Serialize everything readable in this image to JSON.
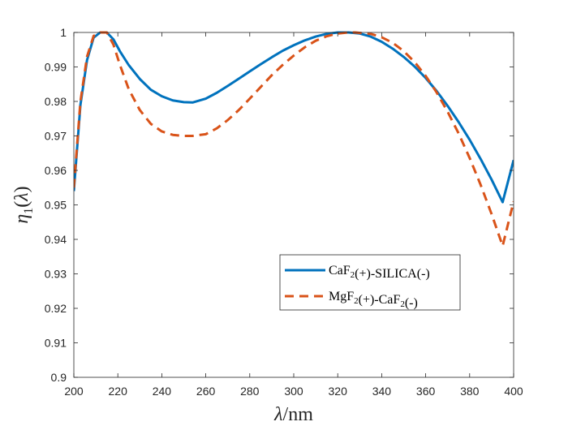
{
  "chart_data": {
    "type": "line",
    "title": "",
    "xlabel": "λ/nm",
    "ylabel": "η1(λ)",
    "xlim": [
      200,
      400
    ],
    "ylim": [
      0.9,
      1.0
    ],
    "xticks": [
      200,
      220,
      240,
      260,
      280,
      300,
      320,
      340,
      360,
      380,
      400
    ],
    "yticks": [
      0.9,
      0.91,
      0.92,
      0.93,
      0.94,
      0.95,
      0.96,
      0.97,
      0.98,
      0.99,
      1.0
    ],
    "xtick_labels": [
      "200",
      "220",
      "240",
      "260",
      "280",
      "300",
      "320",
      "340",
      "360",
      "380",
      "400"
    ],
    "ytick_labels": [
      "0.9",
      "0.91",
      "0.92",
      "0.93",
      "0.94",
      "0.95",
      "0.96",
      "0.97",
      "0.98",
      "0.99",
      "1"
    ],
    "grid": false,
    "legend_position": "lower-right",
    "series": [
      {
        "name": "CaF2(+)-SILICA(-)",
        "color": "#0072bd",
        "style": "solid",
        "x": [
          200,
          203,
          206,
          209,
          212,
          215,
          218,
          221,
          225,
          230,
          235,
          240,
          245,
          250,
          254,
          260,
          265,
          270,
          275,
          280,
          285,
          290,
          295,
          300,
          305,
          310,
          315,
          320,
          325,
          330,
          335,
          340,
          345,
          350,
          355,
          360,
          365,
          370,
          375,
          380,
          385,
          390,
          395,
          400
        ],
        "y": [
          0.954,
          0.979,
          0.992,
          0.9985,
          1.0,
          1.0,
          0.998,
          0.9945,
          0.9905,
          0.9865,
          0.9834,
          0.9815,
          0.9803,
          0.9798,
          0.9797,
          0.9808,
          0.9825,
          0.9845,
          0.9866,
          0.9887,
          0.9908,
          0.9928,
          0.9947,
          0.9963,
          0.9977,
          0.9988,
          0.9996,
          1.0,
          1.0,
          0.9997,
          0.9988,
          0.9973,
          0.9953,
          0.9929,
          0.9901,
          0.9868,
          0.983,
          0.9787,
          0.974,
          0.9689,
          0.9633,
          0.9573,
          0.9508,
          0.963
        ]
      },
      {
        "name": "MgF2(+)-CaF2(-)",
        "color": "#d95319",
        "style": "dashed",
        "x": [
          200,
          203,
          206,
          209,
          212,
          215,
          218,
          221,
          225,
          230,
          235,
          240,
          245,
          250,
          254,
          260,
          265,
          270,
          275,
          280,
          285,
          290,
          295,
          300,
          305,
          310,
          315,
          320,
          325,
          328,
          335,
          340,
          345,
          350,
          355,
          360,
          365,
          370,
          375,
          380,
          385,
          390,
          395,
          400
        ],
        "y": [
          0.955,
          0.98,
          0.993,
          0.999,
          1.0,
          1.0,
          0.9965,
          0.9905,
          0.9835,
          0.9775,
          0.9735,
          0.9713,
          0.9703,
          0.97,
          0.97,
          0.9705,
          0.9722,
          0.9746,
          0.9775,
          0.9808,
          0.9842,
          0.9876,
          0.9906,
          0.9933,
          0.9957,
          0.9976,
          0.9989,
          0.9997,
          1.0,
          1.0,
          0.9996,
          0.9986,
          0.997,
          0.9946,
          0.9914,
          0.9874,
          0.9826,
          0.977,
          0.9707,
          0.9636,
          0.9558,
          0.9473,
          0.9381,
          0.951
        ]
      }
    ]
  }
}
